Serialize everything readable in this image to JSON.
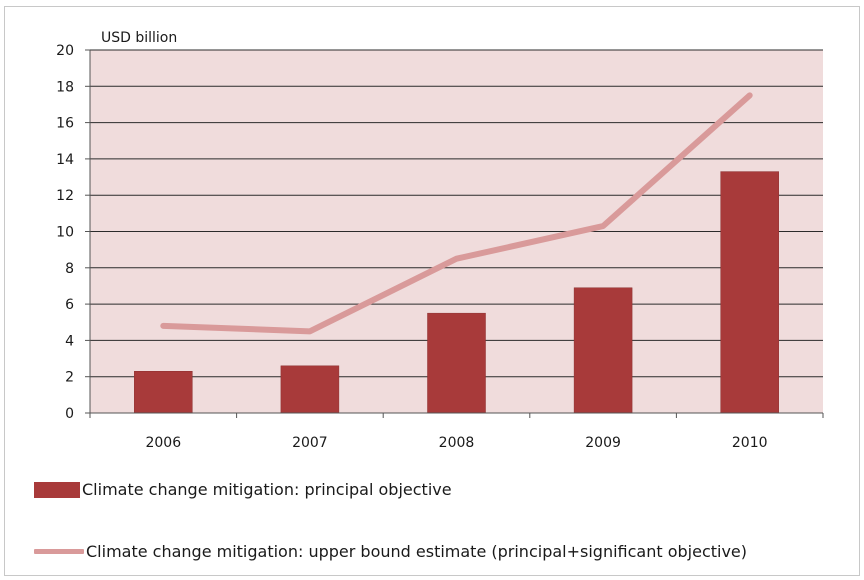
{
  "chart_data": {
    "type": "bar",
    "categories": [
      "2006",
      "2007",
      "2008",
      "2009",
      "2010"
    ],
    "series": [
      {
        "name": "Climate change mitigation: principal objective",
        "type": "bar",
        "color": "#a83a3a",
        "values": [
          2.3,
          2.6,
          5.5,
          6.9,
          13.3
        ]
      },
      {
        "name": "Climate change mitigation: upper bound estimate (principal+significant objective)",
        "type": "line",
        "color": "#d99a9a",
        "values": [
          4.8,
          4.5,
          8.5,
          10.3,
          17.5
        ]
      }
    ],
    "ylabel": "USD billion",
    "ylim": [
      0,
      20
    ],
    "yticks": [
      0,
      2,
      4,
      6,
      8,
      10,
      12,
      14,
      16,
      18,
      20
    ],
    "grid": true,
    "plot_background": "#f0dcdc",
    "legend_position": "bottom"
  }
}
